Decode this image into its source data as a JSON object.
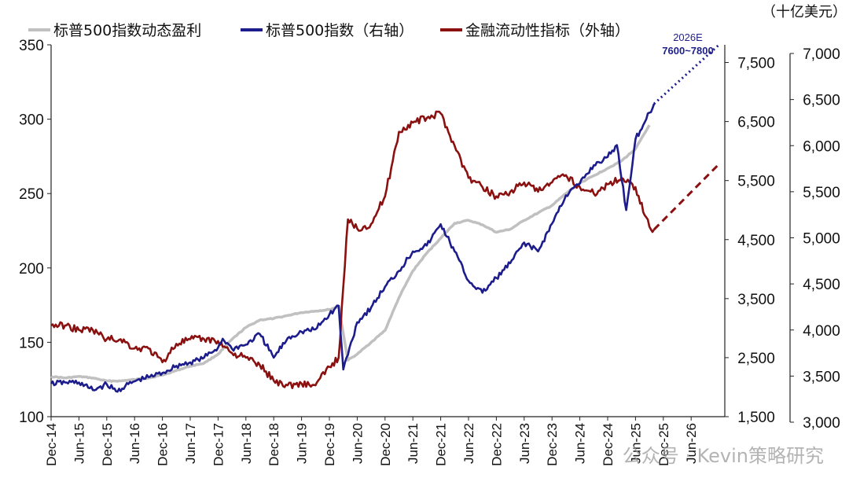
{
  "chart_data": {
    "type": "line",
    "unit_label": "（十亿美元）",
    "x_tick_labels": [
      "Dec-14",
      "Jun-15",
      "Dec-15",
      "Jun-16",
      "Dec-16",
      "Jun-17",
      "Dec-17",
      "Jun-18",
      "Dec-18",
      "Jun-19",
      "Dec-19",
      "Jun-20",
      "Dec-20",
      "Jun-21",
      "Dec-21",
      "Jun-22",
      "Dec-22",
      "Jun-23",
      "Dec-23",
      "Jun-24",
      "Dec-24",
      "Jun-25",
      "Dec-25",
      "Jun-26"
    ],
    "axes": {
      "left": {
        "min": 100,
        "max": 350,
        "ticks": [
          100,
          150,
          200,
          250,
          300,
          350
        ],
        "tick_labels": [
          "100",
          "150",
          "200",
          "250",
          "300",
          "350"
        ]
      },
      "right": {
        "min": 1500,
        "max": 7800,
        "ticks": [
          1500,
          2500,
          3500,
          4500,
          5500,
          6500,
          7500
        ],
        "tick_labels": [
          "1,500",
          "2,500",
          "3,500",
          "4,500",
          "5,500",
          "6,500",
          "7,500"
        ]
      },
      "outer": {
        "min": 3000,
        "max": 7000,
        "ticks": [
          3000,
          3500,
          4000,
          4500,
          5000,
          5500,
          6000,
          6500,
          7000
        ],
        "tick_labels": [
          "3,000",
          "3,500",
          "4,000",
          "4,500",
          "5,000",
          "5,500",
          "6,000",
          "6,500",
          "7,000"
        ]
      }
    },
    "series": [
      {
        "name": "标普500指数动态盈利",
        "axis": "left",
        "color": "#c0c0c0",
        "x": [
          "2014-12",
          "2015-03",
          "2015-06",
          "2015-09",
          "2015-12",
          "2016-03",
          "2016-06",
          "2016-09",
          "2016-12",
          "2017-03",
          "2017-06",
          "2017-09",
          "2017-12",
          "2018-03",
          "2018-06",
          "2018-09",
          "2018-12",
          "2019-03",
          "2019-06",
          "2019-09",
          "2019-12",
          "2020-02",
          "2020-04",
          "2020-06",
          "2020-09",
          "2020-12",
          "2021-03",
          "2021-06",
          "2021-09",
          "2021-12",
          "2022-03",
          "2022-06",
          "2022-09",
          "2022-12",
          "2023-03",
          "2023-06",
          "2023-09",
          "2023-12",
          "2024-03",
          "2024-06",
          "2024-09",
          "2024-12",
          "2025-03",
          "2025-06",
          "2025-09"
        ],
        "y": [
          127,
          126,
          127,
          126,
          124,
          124,
          125,
          126,
          128,
          131,
          134,
          136,
          142,
          152,
          160,
          165,
          166,
          168,
          170,
          171,
          172,
          174,
          138,
          142,
          150,
          158,
          180,
          198,
          210,
          220,
          230,
          232,
          229,
          224,
          226,
          232,
          237,
          242,
          250,
          257,
          262,
          267,
          272,
          280,
          296
        ]
      },
      {
        "name": "标普500指数（右轴）",
        "axis": "right",
        "color": "#1c1c8c",
        "x": [
          "2014-12",
          "2015-03",
          "2015-06",
          "2015-09",
          "2015-12",
          "2016-02",
          "2016-06",
          "2016-09",
          "2016-12",
          "2017-03",
          "2017-06",
          "2017-09",
          "2017-12",
          "2018-01",
          "2018-03",
          "2018-06",
          "2018-09",
          "2018-12",
          "2019-03",
          "2019-06",
          "2019-09",
          "2019-12",
          "2020-02",
          "2020-03",
          "2020-06",
          "2020-09",
          "2020-12",
          "2021-03",
          "2021-06",
          "2021-09",
          "2021-12",
          "2022-03",
          "2022-06",
          "2022-09",
          "2022-12",
          "2023-03",
          "2023-06",
          "2023-09",
          "2023-12",
          "2024-03",
          "2024-06",
          "2024-09",
          "2024-12",
          "2025-02",
          "2025-04",
          "2025-06",
          "2025-09",
          "2025-10"
        ],
        "y": [
          2060,
          2080,
          2080,
          1950,
          2050,
          1930,
          2100,
          2170,
          2240,
          2360,
          2420,
          2500,
          2670,
          2820,
          2650,
          2720,
          2900,
          2500,
          2830,
          2940,
          2980,
          3230,
          3380,
          2300,
          3100,
          3350,
          3700,
          3970,
          4300,
          4400,
          4760,
          4300,
          3800,
          3600,
          3850,
          4100,
          4450,
          4300,
          4770,
          5250,
          5450,
          5760,
          5900,
          6100,
          5000,
          6200,
          6650,
          6800
        ]
      },
      {
        "name": "金融流动性指标（外轴）",
        "axis": "outer",
        "color": "#8b1010",
        "x": [
          "2014-12",
          "2015-03",
          "2015-06",
          "2015-09",
          "2015-12",
          "2016-03",
          "2016-06",
          "2016-09",
          "2016-12",
          "2017-03",
          "2017-06",
          "2017-09",
          "2017-12",
          "2018-03",
          "2018-06",
          "2018-09",
          "2018-12",
          "2019-03",
          "2019-06",
          "2019-09",
          "2019-12",
          "2020-02",
          "2020-04",
          "2020-06",
          "2020-09",
          "2020-12",
          "2021-03",
          "2021-06",
          "2021-09",
          "2021-12",
          "2022-03",
          "2022-06",
          "2022-09",
          "2022-12",
          "2023-03",
          "2023-06",
          "2023-09",
          "2023-12",
          "2024-03",
          "2024-06",
          "2024-09",
          "2024-12",
          "2025-03",
          "2025-06",
          "2025-09",
          "2025-10"
        ],
        "y": [
          4050,
          4050,
          4000,
          4000,
          3900,
          3900,
          3800,
          3800,
          3650,
          3850,
          3900,
          3900,
          3880,
          3750,
          3700,
          3620,
          3450,
          3400,
          3420,
          3400,
          3600,
          3700,
          5200,
          5100,
          5150,
          5450,
          6150,
          6250,
          6300,
          6350,
          6000,
          5650,
          5550,
          5450,
          5500,
          5600,
          5500,
          5600,
          5680,
          5550,
          5480,
          5580,
          5650,
          5550,
          5120,
          5090
        ]
      }
    ],
    "projections": [
      {
        "series": "标普500指数（右轴）",
        "axis": "right",
        "color": "#1c1c8c",
        "style": "dotted",
        "x": [
          "2025-10",
          "2026-12"
        ],
        "y": [
          6800,
          7800
        ]
      },
      {
        "series": "金融流动性指标（外轴）",
        "axis": "outer",
        "color": "#8b1010",
        "style": "dashed",
        "x": [
          "2025-10",
          "2026-12"
        ],
        "y": [
          5090,
          5800
        ]
      }
    ],
    "annotations": [
      {
        "text": "2026E"
      },
      {
        "text": "7600~7800"
      }
    ],
    "legend_position": "top",
    "grid": false
  },
  "watermark": {
    "text": "公众号 · Kevin策略研究"
  }
}
